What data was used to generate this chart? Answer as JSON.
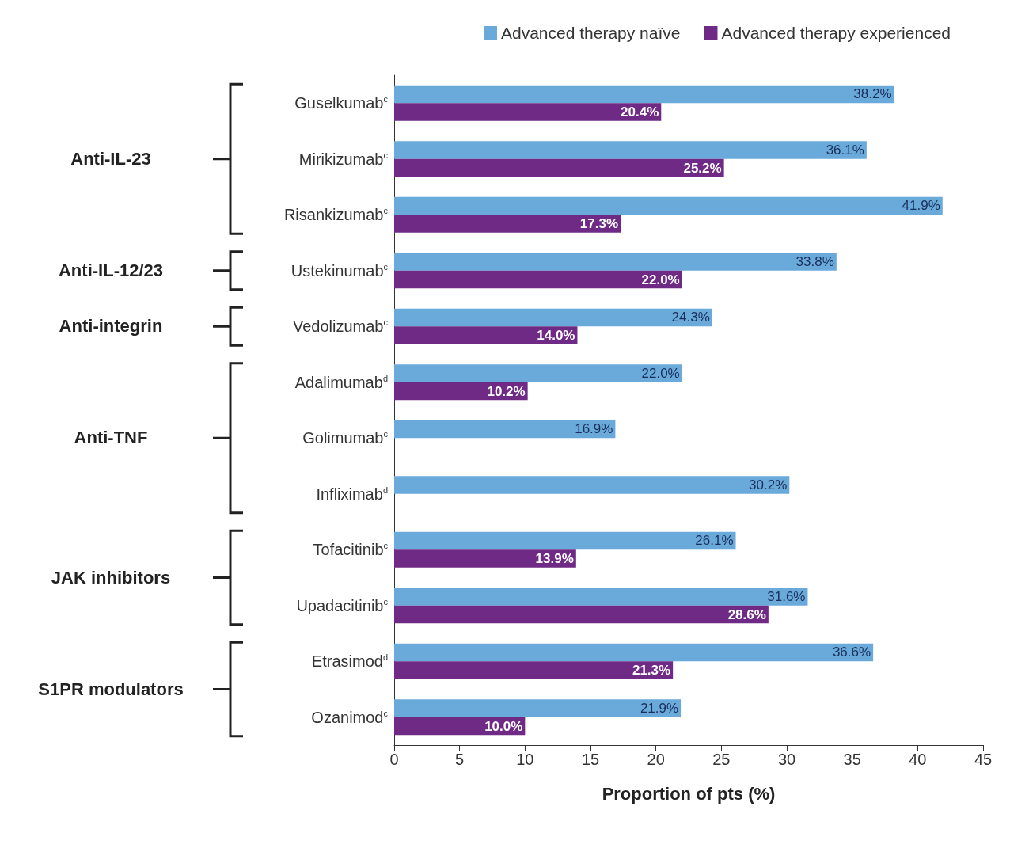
{
  "chart_data": {
    "type": "bar",
    "orientation": "horizontal",
    "xlabel": "Proportion of pts (%)",
    "categories": [
      "Guselkumab$^{c}$",
      "Mirikizumab$^{c}$",
      "Risankizumab$^{c}$",
      "Ustekinumab$^{c}$",
      "Vedolizumab$^{c}$",
      "Adalimumab$^{d}$",
      "Golimumab$^{c}$",
      "Infliximab$^{d}$",
      "Tofacitinib$^{c}$",
      "Upadacitinib$^{c}$",
      "Etrasimod$^{d}$",
      "Ozanimod$^{c}$"
    ],
    "series": [
      {
        "name": "Advanced therapy naïve",
        "color": "#6aaadb",
        "values": [
          38.2,
          36.1,
          41.9,
          33.8,
          24.3,
          22.0,
          16.9,
          30.2,
          26.1,
          31.6,
          36.6,
          21.9
        ],
        "value_labels": [
          "38.2%",
          "36.1%",
          "41.9%",
          "33.8%",
          "24.3%",
          "22.0%",
          "16.9%",
          "30.2%",
          "26.1%",
          "31.6%",
          "36.6%",
          "21.9%"
        ]
      },
      {
        "name": "Advanced therapy experienced",
        "color": "#6e2a85",
        "values": [
          20.4,
          25.2,
          17.3,
          22.0,
          14.0,
          10.2,
          null,
          null,
          13.9,
          28.6,
          21.3,
          10.0
        ],
        "value_labels": [
          "20.4%",
          "25.2%",
          "17.3%",
          "22.0%",
          "14.0%",
          "10.2%",
          null,
          null,
          "13.9%",
          "28.6%",
          "21.3%",
          "10.0%"
        ]
      }
    ],
    "xlim": [
      0,
      45
    ],
    "xticks": [
      0,
      5,
      10,
      15,
      20,
      25,
      30,
      35,
      40,
      45
    ],
    "grid": false,
    "legend": "top right",
    "annotations": [
      "Anti-IL-23",
      "Anti-IL-12/23",
      "Anti-integrin",
      "Anti-TNF",
      "JAK inhibitors",
      "S1PR modulators"
    ]
  }
}
